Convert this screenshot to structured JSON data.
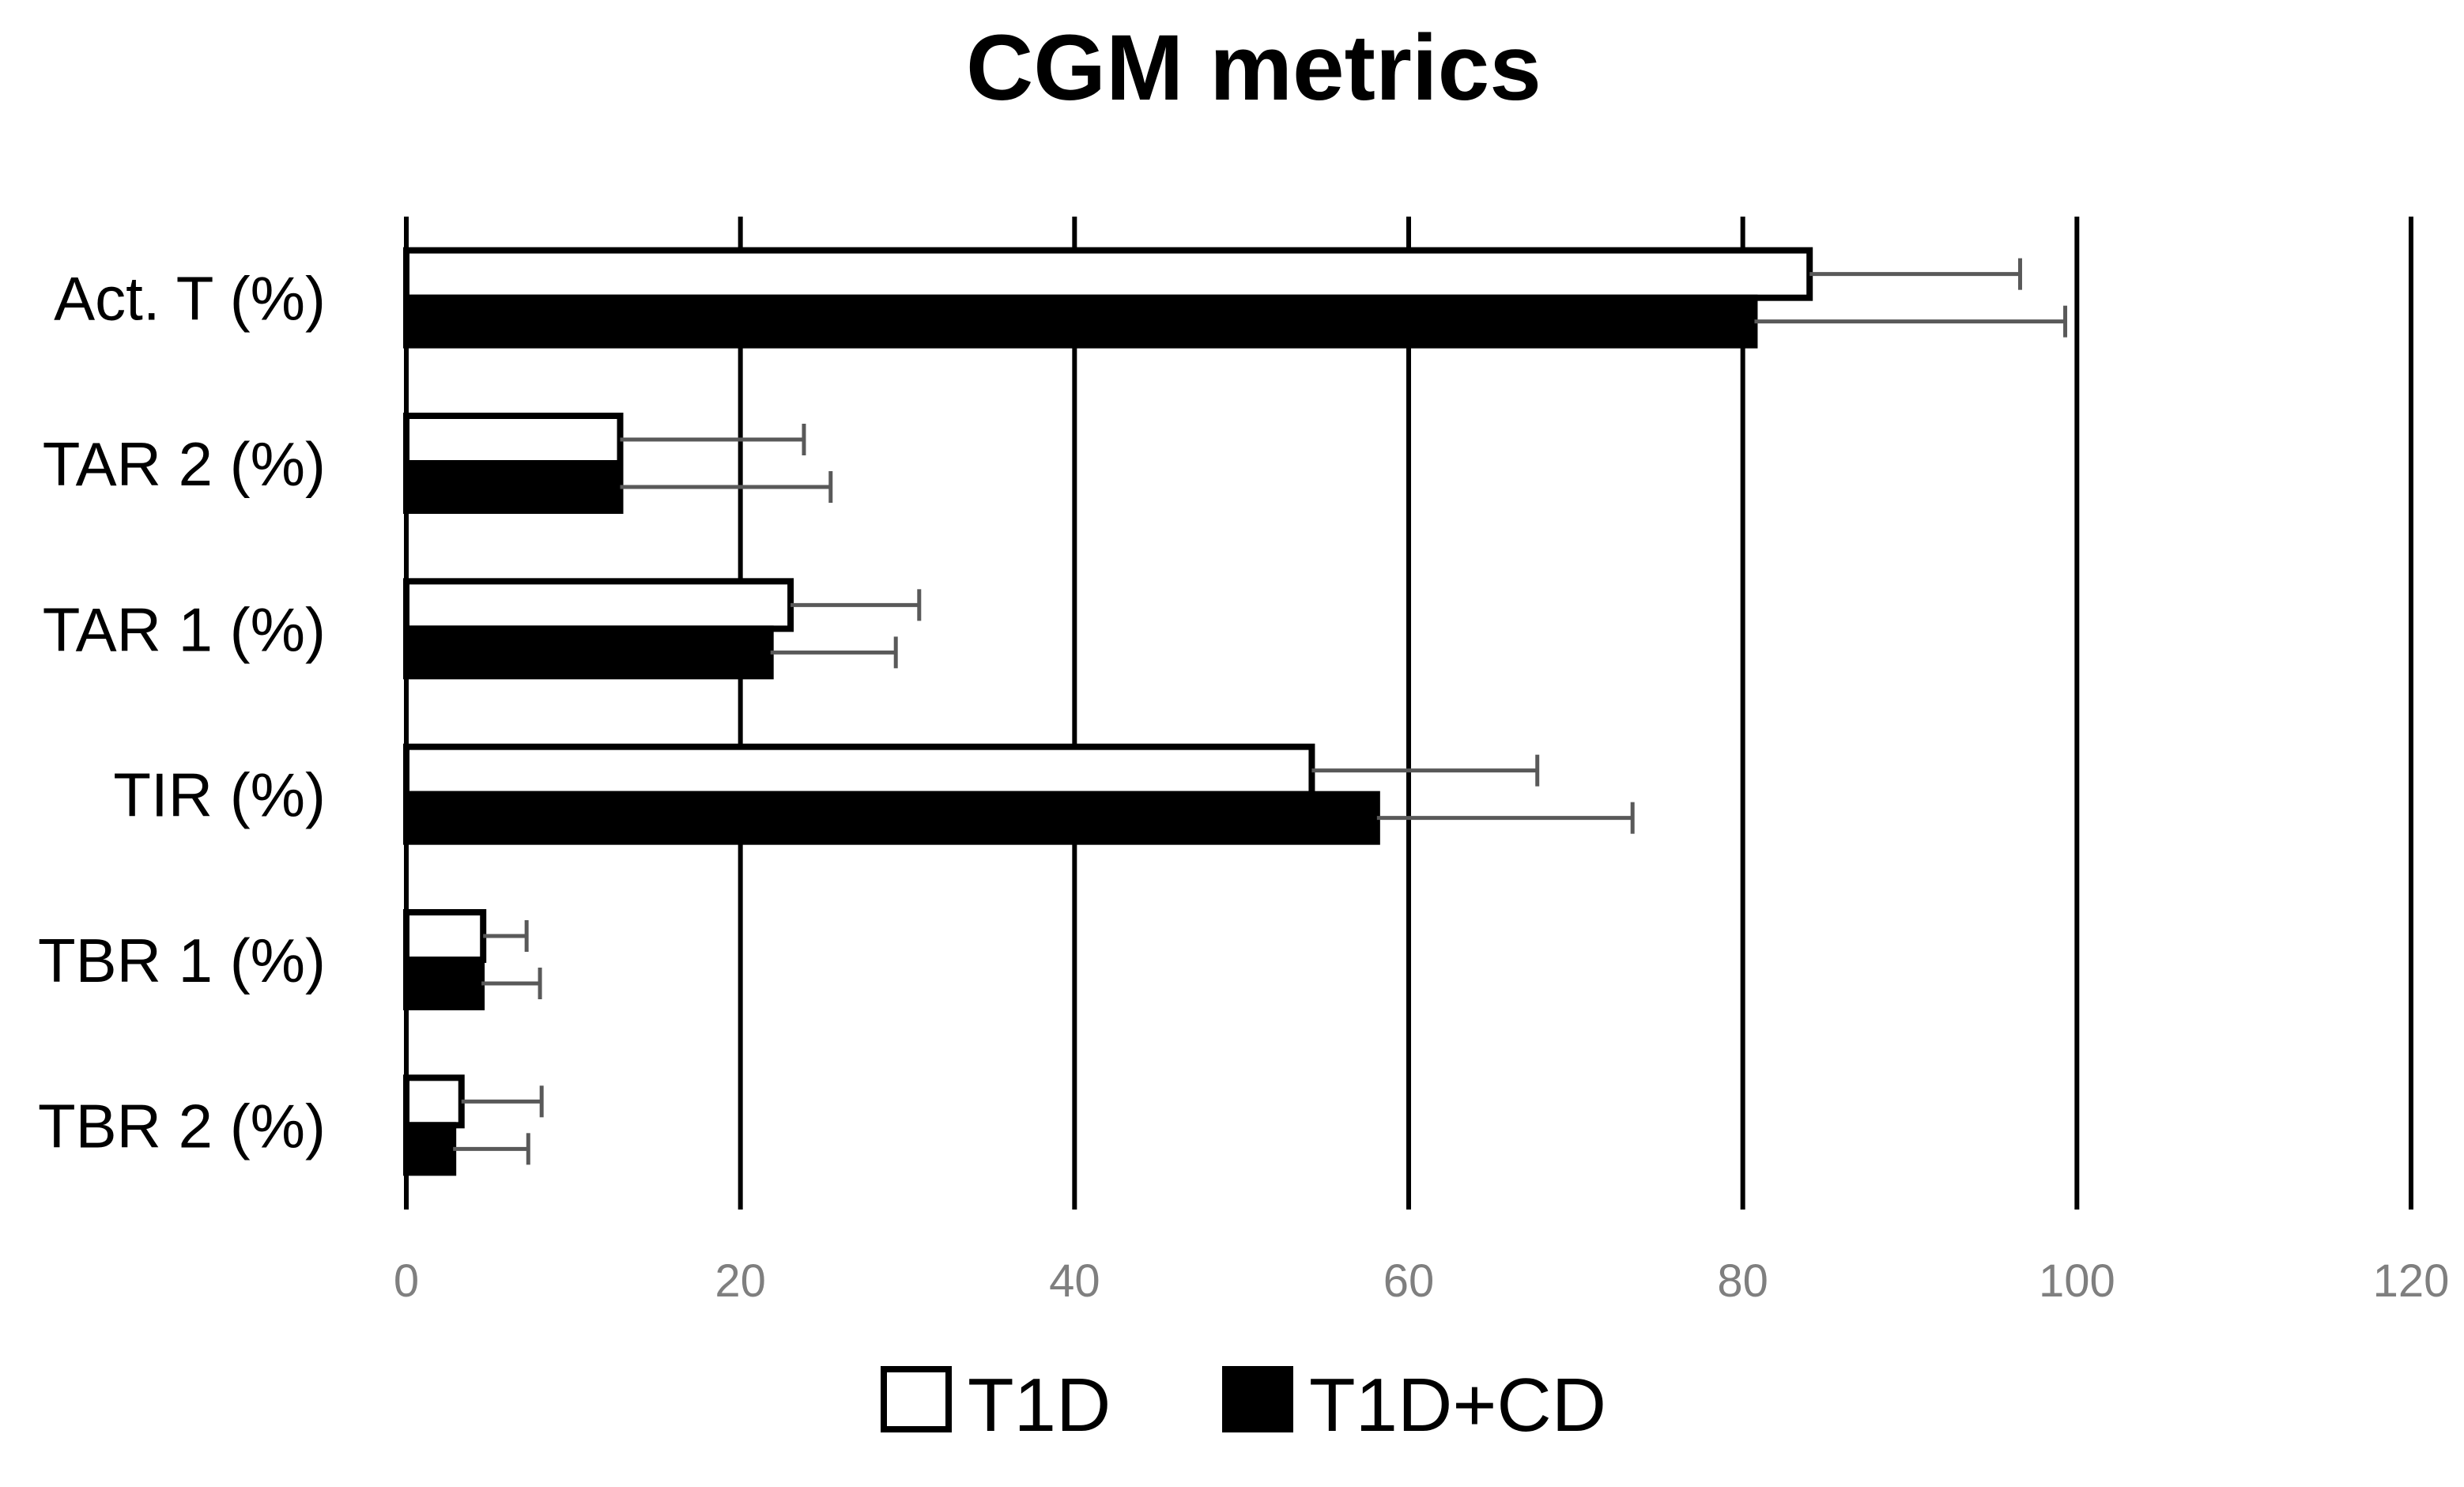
{
  "chart_data": {
    "type": "bar",
    "orientation": "horizontal",
    "title": "CGM metrics",
    "xlabel": "",
    "ylabel": "",
    "xlim": [
      0,
      120
    ],
    "x_ticks": [
      0,
      20,
      40,
      60,
      80,
      100,
      120
    ],
    "x_tick_labels": [
      "0",
      "20",
      "40",
      "60",
      "80",
      "100",
      "120"
    ],
    "grid": "vertical",
    "legend_position": "bottom-center",
    "categories": [
      "Act. T (%)",
      "TAR 2 (%)",
      "TAR 1 (%)",
      "TIR (%)",
      "TBR 1 (%)",
      "TBR 2 (%)"
    ],
    "series": [
      {
        "name": "T1D",
        "fill": "#ffffff",
        "stroke": "#000000",
        "values": [
          84,
          12.8,
          23,
          54.2,
          4.6,
          3.3
        ],
        "error_plus": [
          12.6,
          11,
          7.7,
          13.5,
          2.6,
          4.8
        ]
      },
      {
        "name": "T1D+CD",
        "fill": "#000000",
        "stroke": "#000000",
        "values": [
          80.7,
          12.8,
          21.8,
          58.1,
          4.5,
          2.8
        ],
        "error_plus": [
          18.6,
          12.6,
          7.5,
          15.3,
          3.5,
          4.5
        ]
      }
    ],
    "colors": {
      "axis": "#000000",
      "gridline": "#000000",
      "error_bar": "#595959",
      "tick_label": "#7f7f7f"
    }
  }
}
